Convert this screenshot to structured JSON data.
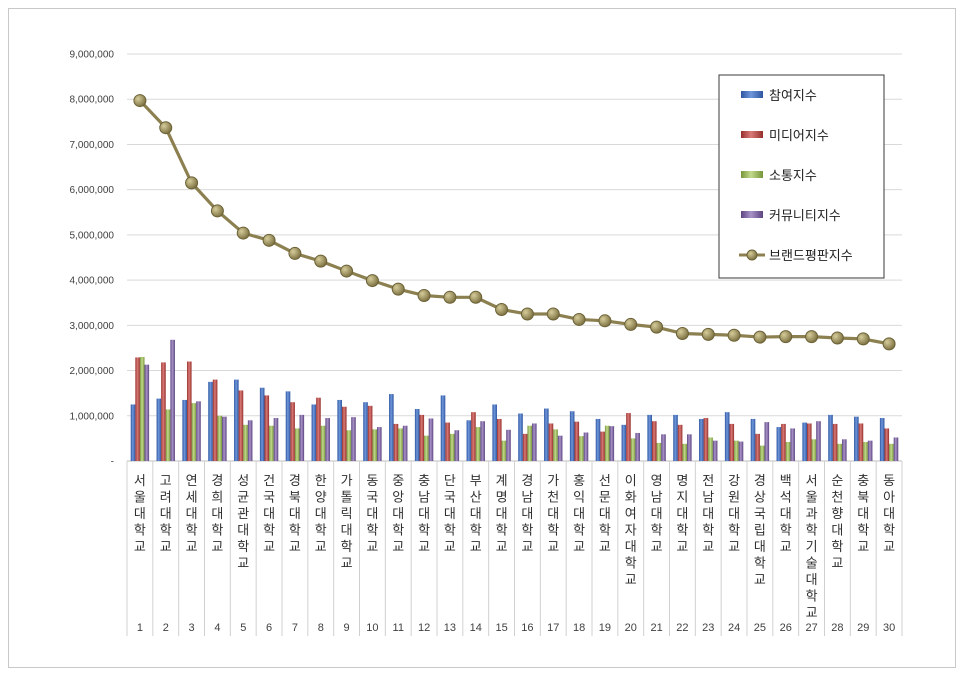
{
  "chart_data": {
    "type": "bar",
    "categories": [
      "서울대학교",
      "고려대학교",
      "연세대학교",
      "경희대학교",
      "성균관대학교",
      "건국대학교",
      "경북대학교",
      "한양대학교",
      "가톨릭대학교",
      "동국대학교",
      "중앙대학교",
      "충남대학교",
      "단국대학교",
      "부산대학교",
      "계명대학교",
      "경남대학교",
      "가천대학교",
      "홍익대학교",
      "선문대학교",
      "이화여자대학교",
      "영남대학교",
      "명지대학교",
      "전남대학교",
      "강원대학교",
      "경상국립대학교",
      "백석대학교",
      "서울과학기술대학교",
      "순천향대학교",
      "충북대학교",
      "동아대학교"
    ],
    "ranks": [
      "1",
      "2",
      "3",
      "4",
      "5",
      "6",
      "7",
      "8",
      "9",
      "10",
      "11",
      "12",
      "13",
      "14",
      "15",
      "16",
      "17",
      "18",
      "19",
      "20",
      "21",
      "22",
      "23",
      "24",
      "25",
      "26",
      "27",
      "28",
      "29",
      "30"
    ],
    "series": [
      {
        "name": "참여지수",
        "type": "bar",
        "color": "#4472c4",
        "values": [
          1250000,
          1380000,
          1350000,
          1750000,
          1800000,
          1620000,
          1540000,
          1250000,
          1350000,
          1300000,
          1480000,
          1150000,
          1450000,
          900000,
          1250000,
          1050000,
          1160000,
          1100000,
          930000,
          800000,
          1020000,
          1020000,
          930000,
          1080000,
          930000,
          750000,
          850000,
          1020000,
          980000,
          950000
        ]
      },
      {
        "name": "미디어지수",
        "type": "bar",
        "color": "#c0504d",
        "values": [
          2290000,
          2180000,
          2200000,
          1800000,
          1560000,
          1450000,
          1300000,
          1400000,
          1200000,
          1220000,
          820000,
          1020000,
          850000,
          1080000,
          930000,
          600000,
          830000,
          870000,
          650000,
          1060000,
          880000,
          800000,
          950000,
          820000,
          600000,
          820000,
          830000,
          820000,
          830000,
          720000
        ]
      },
      {
        "name": "소통지수",
        "type": "bar",
        "color": "#9bbb59",
        "values": [
          2300000,
          1140000,
          1280000,
          1000000,
          800000,
          780000,
          720000,
          780000,
          680000,
          700000,
          720000,
          560000,
          600000,
          750000,
          450000,
          780000,
          700000,
          550000,
          780000,
          500000,
          400000,
          380000,
          520000,
          450000,
          340000,
          420000,
          480000,
          380000,
          420000,
          380000
        ]
      },
      {
        "name": "커뮤니티지수",
        "type": "bar",
        "color": "#8064a2",
        "values": [
          2130000,
          2680000,
          1320000,
          980000,
          900000,
          950000,
          1020000,
          950000,
          970000,
          750000,
          780000,
          940000,
          680000,
          880000,
          690000,
          830000,
          560000,
          630000,
          770000,
          620000,
          590000,
          590000,
          450000,
          430000,
          860000,
          720000,
          880000,
          480000,
          450000,
          520000
        ]
      },
      {
        "name": "브랜드평판지수",
        "type": "line",
        "color": "#8c8050",
        "values": [
          7970000,
          7370000,
          6150000,
          5530000,
          5040000,
          4880000,
          4590000,
          4420000,
          4200000,
          3990000,
          3800000,
          3660000,
          3620000,
          3620000,
          3350000,
          3250000,
          3250000,
          3130000,
          3100000,
          3020000,
          2960000,
          2820000,
          2800000,
          2780000,
          2740000,
          2750000,
          2750000,
          2720000,
          2700000,
          2590000
        ]
      }
    ],
    "ylim": [
      0,
      9000000
    ],
    "yticks": [
      "-",
      "1,000,000",
      "2,000,000",
      "3,000,000",
      "4,000,000",
      "5,000,000",
      "6,000,000",
      "7,000,000",
      "8,000,000",
      "9,000,000"
    ],
    "grid": true,
    "legend": "top-right",
    "title": "",
    "xlabel": "",
    "ylabel": ""
  }
}
